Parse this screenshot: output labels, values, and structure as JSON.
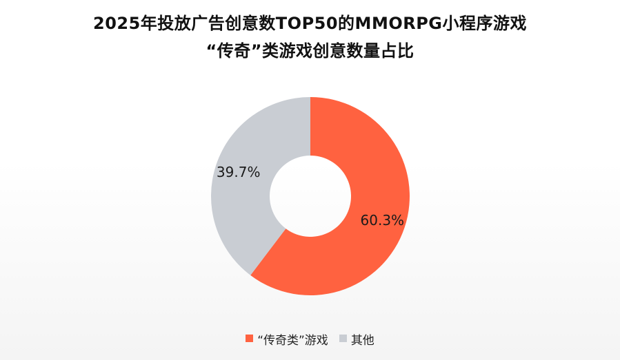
{
  "title": {
    "line1": "2025年投放广告创意数TOP50的MMORPG小程序游戏",
    "line2": "“传奇”类游戏创意数量占比"
  },
  "chart_data": {
    "type": "pie",
    "donut": true,
    "title": "2025年投放广告创意数TOP50的MMORPG小程序游戏“传奇”类游戏创意数量占比",
    "slices": [
      {
        "label": "“传奇类”游戏",
        "value": 60.3,
        "display": "60.3%",
        "color": "#FF6240"
      },
      {
        "label": "其他",
        "value": 39.7,
        "display": "39.7%",
        "color": "#C9CDD3"
      }
    ],
    "start": "12 o'clock",
    "direction": "clockwise",
    "legend_position": "bottom"
  }
}
